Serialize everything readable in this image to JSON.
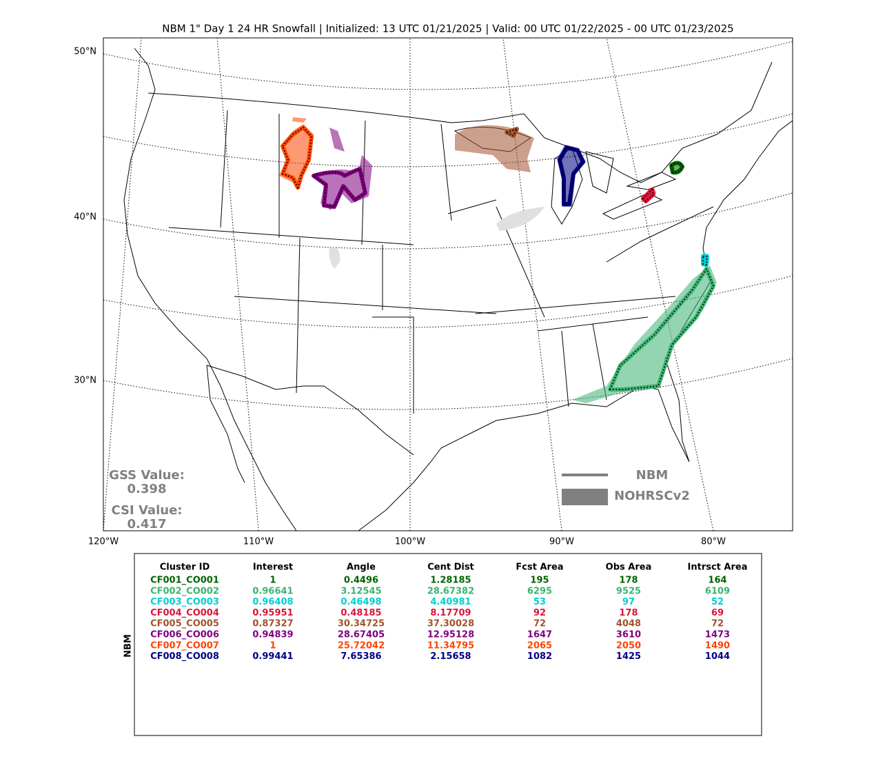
{
  "title": "NBM 1\" Day 1 24 HR Snowfall | Initialized: 13 UTC 01/21/2025 | Valid: 00 UTC 01/22/2025 - 00 UTC 01/23/2025",
  "map": {
    "lat_labels": [
      "50°N",
      "40°N",
      "30°N"
    ],
    "lon_labels": [
      "120°W",
      "110°W",
      "100°W",
      "90°W",
      "80°W"
    ],
    "scores": [
      {
        "label": "GSS Value:",
        "value": 0.398
      },
      {
        "label": "CSI Value:",
        "value": 0.417
      }
    ],
    "legend": [
      "NBM",
      "NOHRSCv2"
    ]
  },
  "table": {
    "side_label": "NBM",
    "columns": [
      "Cluster ID",
      "Interest",
      "Angle",
      "Cent Dist",
      "Fcst Area",
      "Obs Area",
      "Intrsct Area"
    ],
    "rows": [
      {
        "color": "#006400",
        "cells": [
          "CF001_CO001",
          1,
          0.4496,
          1.28185,
          195,
          178,
          164
        ]
      },
      {
        "color": "#3cb371",
        "cells": [
          "CF002_CO002",
          0.96641,
          3.12545,
          28.67382,
          6295,
          9525,
          6109
        ]
      },
      {
        "color": "#00ced1",
        "cells": [
          "CF003_CO003",
          0.96408,
          0.46498,
          4.40981,
          53,
          97,
          52
        ]
      },
      {
        "color": "#dc143c",
        "cells": [
          "CF004_CO004",
          0.95951,
          0.48185,
          8.17709,
          92,
          178,
          69
        ]
      },
      {
        "color": "#a0522d",
        "cells": [
          "CF005_CO005",
          0.87327,
          30.34725,
          37.30028,
          72,
          4048,
          72
        ]
      },
      {
        "color": "#800080",
        "cells": [
          "CF006_CO006",
          0.94839,
          28.67405,
          12.95128,
          1647,
          3610,
          1473
        ]
      },
      {
        "color": "#ff4500",
        "cells": [
          "CF007_CO007",
          1,
          25.72042,
          11.34795,
          2065,
          2050,
          1490
        ]
      },
      {
        "color": "#000080",
        "cells": [
          "CF008_CO008",
          0.99441,
          7.65386,
          2.15658,
          1082,
          1425,
          1044
        ]
      }
    ]
  }
}
